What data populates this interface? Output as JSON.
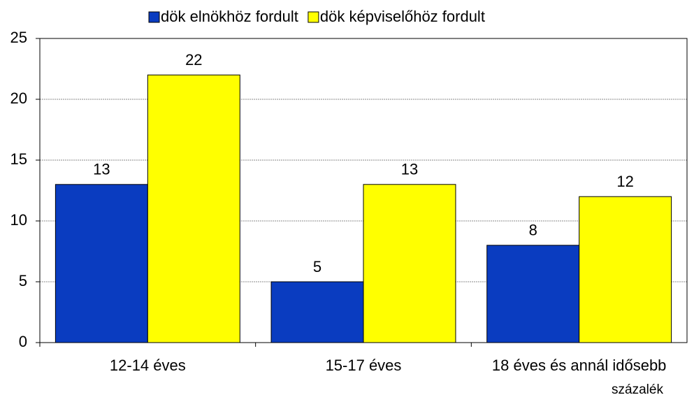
{
  "chart_data": {
    "type": "bar",
    "categories": [
      "12-14 éves",
      "15-17 éves",
      "18 éves és annál idősebb"
    ],
    "series": [
      {
        "name": "dök elnökhöz fordult",
        "color": "#0a3cc0",
        "values": [
          13,
          5,
          8
        ]
      },
      {
        "name": "dök képviselőhöz fordult",
        "color": "#ffff00",
        "values": [
          22,
          13,
          12
        ]
      }
    ],
    "ylim": [
      0,
      25
    ],
    "yticks": [
      0,
      5,
      10,
      15,
      20,
      25
    ],
    "grid": true,
    "legend": "top",
    "annotation": "százalék"
  }
}
